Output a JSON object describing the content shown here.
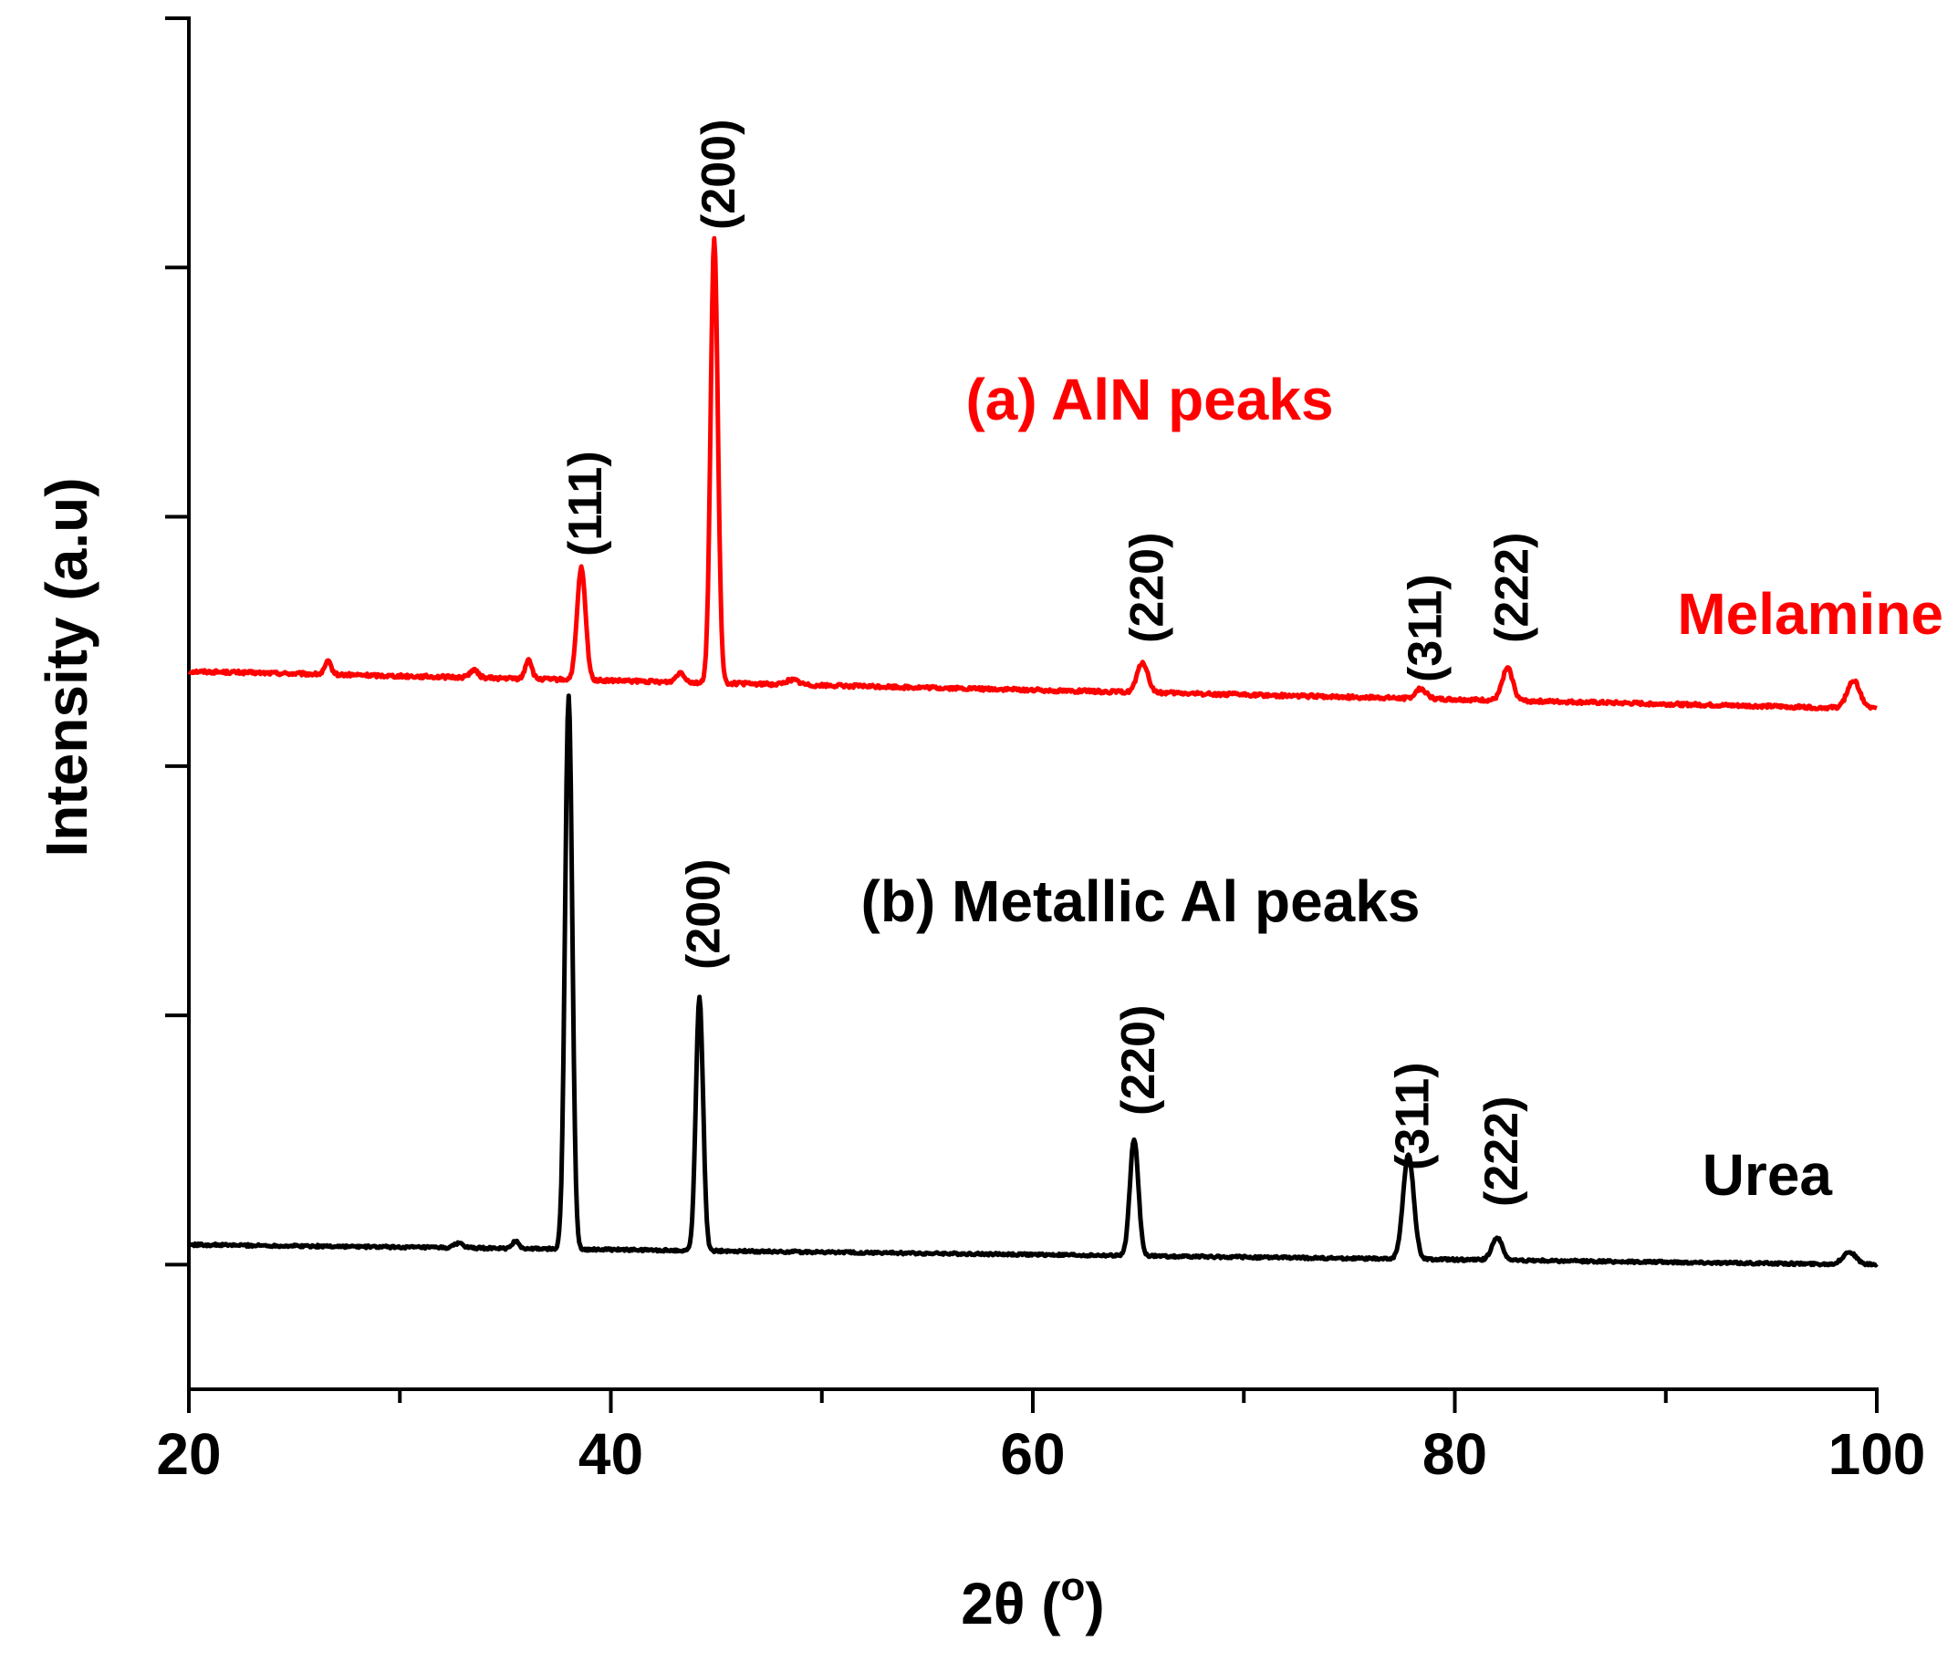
{
  "chart_data": {
    "type": "line",
    "title": "",
    "xlabel": "2θ (",
    "xlabel_superscript": "o",
    "xlabel_close": ")",
    "ylabel": "Intensity (a.u)",
    "xlim": [
      20,
      100
    ],
    "ylim": [
      -0.5,
      5.0
    ],
    "xticks": [
      20,
      40,
      60,
      80,
      100
    ],
    "xticks_minor": [
      30,
      50,
      70,
      90
    ],
    "yticks_minor": [
      0,
      1,
      2,
      3,
      4,
      5
    ],
    "grid": false,
    "series": [
      {
        "name": "Melamine",
        "label": "Melamine",
        "color": "#ff0000",
        "baseline_start": 2.38,
        "baseline_end": 2.23,
        "noise": 0.007,
        "peaks": [
          {
            "x": 26.6,
            "h": 0.05,
            "w": 0.15
          },
          {
            "x": 33.5,
            "h": 0.03,
            "w": 0.2
          },
          {
            "x": 36.1,
            "h": 0.08,
            "w": 0.15
          },
          {
            "x": 38.6,
            "h": 0.45,
            "w": 0.2
          },
          {
            "x": 43.3,
            "h": 0.04,
            "w": 0.2
          },
          {
            "x": 44.9,
            "h": 1.78,
            "w": 0.17
          },
          {
            "x": 48.6,
            "h": 0.02,
            "w": 0.3
          },
          {
            "x": 65.2,
            "h": 0.12,
            "w": 0.25
          },
          {
            "x": 78.4,
            "h": 0.04,
            "w": 0.25
          },
          {
            "x": 82.5,
            "h": 0.13,
            "w": 0.25
          },
          {
            "x": 98.9,
            "h": 0.11,
            "w": 0.3
          }
        ]
      },
      {
        "name": "Urea",
        "label": "Urea",
        "color": "#000000",
        "baseline_start": 0.08,
        "baseline_end": 0.0,
        "noise": 0.005,
        "peaks": [
          {
            "x": 32.8,
            "h": 0.02,
            "w": 0.2
          },
          {
            "x": 35.5,
            "h": 0.03,
            "w": 0.15
          },
          {
            "x": 38.0,
            "h": 2.22,
            "w": 0.17
          },
          {
            "x": 44.2,
            "h": 1.02,
            "w": 0.17
          },
          {
            "x": 64.8,
            "h": 0.47,
            "w": 0.2
          },
          {
            "x": 77.8,
            "h": 0.42,
            "w": 0.25
          },
          {
            "x": 82.0,
            "h": 0.09,
            "w": 0.25
          },
          {
            "x": 98.7,
            "h": 0.05,
            "w": 0.3
          }
        ]
      }
    ],
    "annotations": {
      "melamine_title": "(a) AlN peaks",
      "urea_title": "(b) Metallic Al peaks",
      "melamine_peaks": [
        {
          "label": "(111)",
          "x": 38.6
        },
        {
          "label": "(200)",
          "x": 44.9
        },
        {
          "label": "(220)",
          "x": 65.2
        },
        {
          "label": "(311)",
          "x": 78.4
        },
        {
          "label": "(222)",
          "x": 82.5
        }
      ],
      "urea_peaks": [
        {
          "label": "(200)",
          "x": 44.2
        },
        {
          "label": "(220)",
          "x": 64.8
        },
        {
          "label": "(311)",
          "x": 77.8
        },
        {
          "label": "(222)",
          "x": 82.0
        }
      ]
    }
  }
}
